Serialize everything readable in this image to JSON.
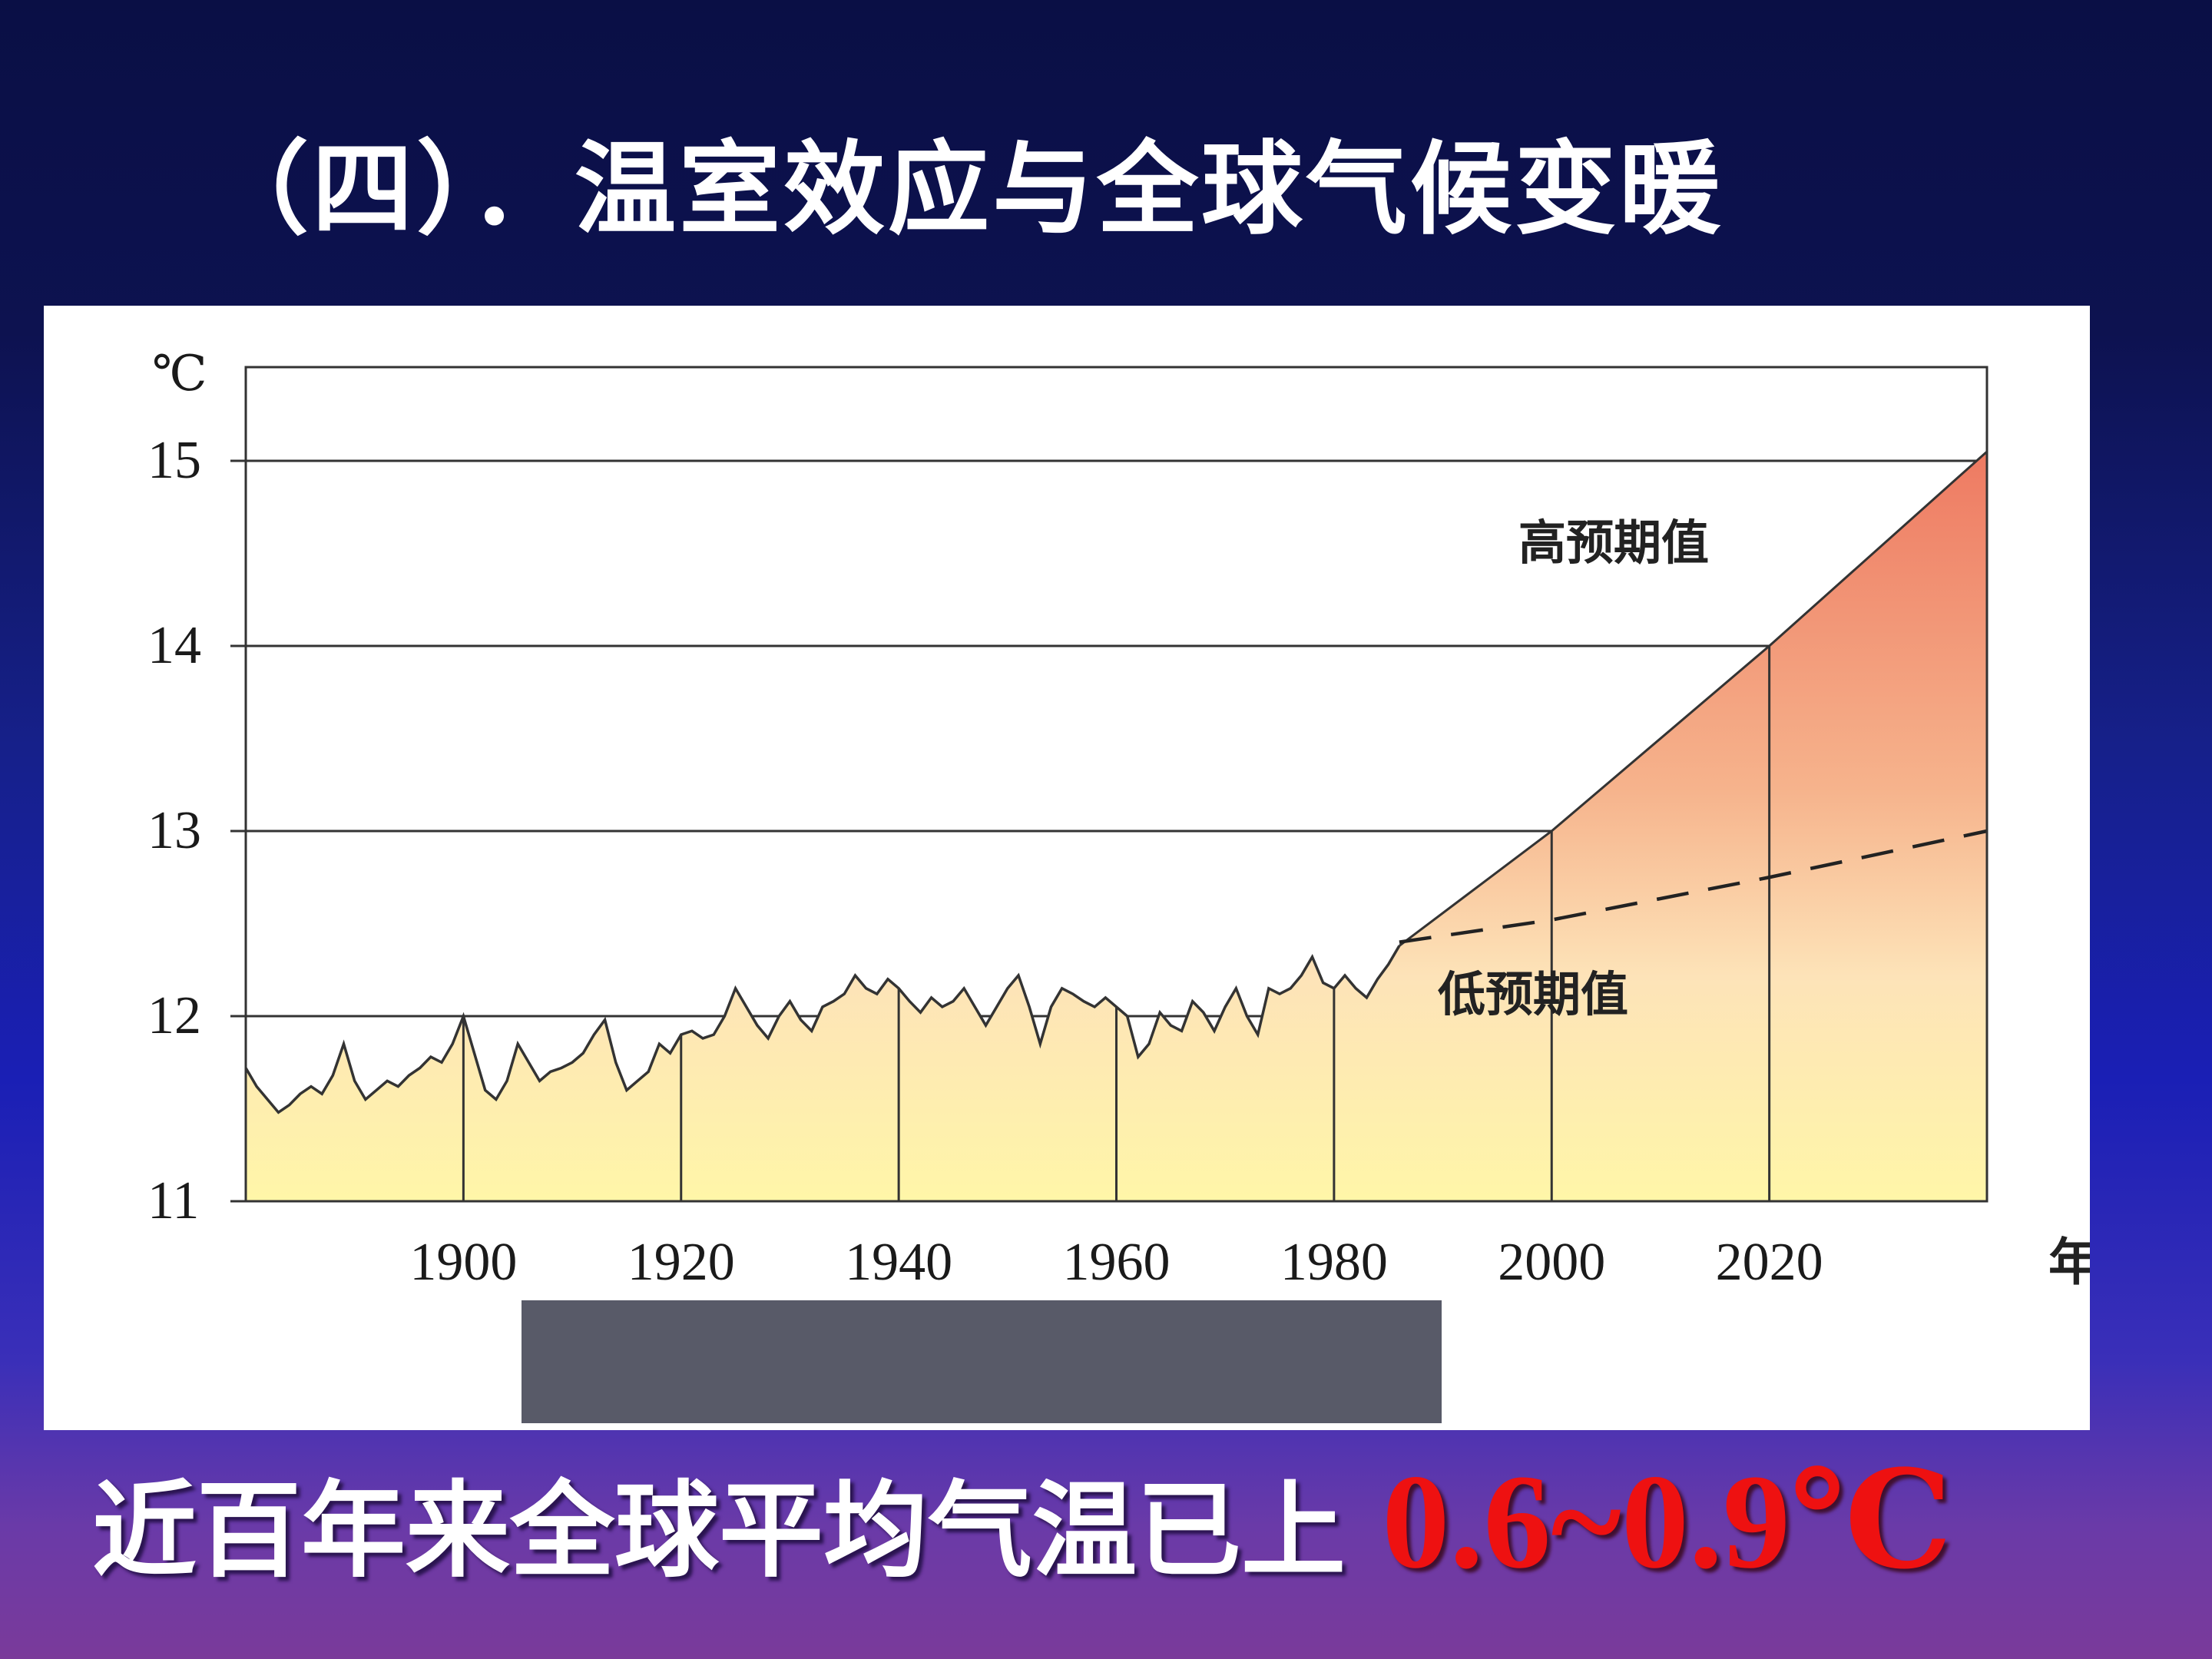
{
  "title": "（四）．温室效应与全球气候变暖",
  "footer": {
    "text": "近百年来全球平均气温已上",
    "highlight": "0.6~0.9℃",
    "highlight_color": "#ee1111"
  },
  "chart_data": {
    "type": "area",
    "title": "",
    "xlabel": "年",
    "ylabel": "℃",
    "xlim": [
      1880,
      2040
    ],
    "ylim": [
      11,
      15.5
    ],
    "x_ticks": [
      1900,
      1920,
      1940,
      1960,
      1980,
      2000,
      2020
    ],
    "y_ticks": [
      11,
      12,
      13,
      14,
      15
    ],
    "grid": "horizontal",
    "series": [
      {
        "values": [
          [
            1880,
            11.72
          ],
          [
            1881,
            11.62
          ],
          [
            1882,
            11.55
          ],
          [
            1883,
            11.48
          ],
          [
            1884,
            11.52
          ],
          [
            1885,
            11.58
          ],
          [
            1886,
            11.62
          ],
          [
            1887,
            11.58
          ],
          [
            1888,
            11.68
          ],
          [
            1889,
            11.85
          ],
          [
            1890,
            11.65
          ],
          [
            1891,
            11.55
          ],
          [
            1892,
            11.6
          ],
          [
            1893,
            11.65
          ],
          [
            1894,
            11.62
          ],
          [
            1895,
            11.68
          ],
          [
            1896,
            11.72
          ],
          [
            1897,
            11.78
          ],
          [
            1898,
            11.75
          ],
          [
            1899,
            11.85
          ],
          [
            1900,
            12.0
          ],
          [
            1901,
            11.8
          ],
          [
            1902,
            11.6
          ],
          [
            1903,
            11.55
          ],
          [
            1904,
            11.65
          ],
          [
            1905,
            11.85
          ],
          [
            1906,
            11.75
          ],
          [
            1907,
            11.65
          ],
          [
            1908,
            11.7
          ],
          [
            1909,
            11.72
          ],
          [
            1910,
            11.75
          ],
          [
            1911,
            11.8
          ],
          [
            1912,
            11.9
          ],
          [
            1913,
            11.98
          ],
          [
            1914,
            11.75
          ],
          [
            1915,
            11.6
          ],
          [
            1916,
            11.65
          ],
          [
            1917,
            11.7
          ],
          [
            1918,
            11.85
          ],
          [
            1919,
            11.8
          ],
          [
            1920,
            11.9
          ],
          [
            1921,
            11.92
          ],
          [
            1922,
            11.88
          ],
          [
            1923,
            11.9
          ],
          [
            1924,
            12.0
          ],
          [
            1925,
            12.15
          ],
          [
            1926,
            12.05
          ],
          [
            1927,
            11.95
          ],
          [
            1928,
            11.88
          ],
          [
            1929,
            12.0
          ],
          [
            1930,
            12.08
          ],
          [
            1931,
            11.98
          ],
          [
            1932,
            11.92
          ],
          [
            1933,
            12.05
          ],
          [
            1934,
            12.08
          ],
          [
            1935,
            12.12
          ],
          [
            1936,
            12.22
          ],
          [
            1937,
            12.15
          ],
          [
            1938,
            12.12
          ],
          [
            1939,
            12.2
          ],
          [
            1940,
            12.15
          ],
          [
            1941,
            12.08
          ],
          [
            1942,
            12.02
          ],
          [
            1943,
            12.1
          ],
          [
            1944,
            12.05
          ],
          [
            1945,
            12.08
          ],
          [
            1946,
            12.15
          ],
          [
            1947,
            12.05
          ],
          [
            1948,
            11.95
          ],
          [
            1949,
            12.05
          ],
          [
            1950,
            12.15
          ],
          [
            1951,
            12.22
          ],
          [
            1952,
            12.05
          ],
          [
            1953,
            11.85
          ],
          [
            1954,
            12.05
          ],
          [
            1955,
            12.15
          ],
          [
            1956,
            12.12
          ],
          [
            1957,
            12.08
          ],
          [
            1958,
            12.05
          ],
          [
            1959,
            12.1
          ],
          [
            1960,
            12.05
          ],
          [
            1961,
            12.0
          ],
          [
            1962,
            11.78
          ],
          [
            1963,
            11.85
          ],
          [
            1964,
            12.02
          ],
          [
            1965,
            11.95
          ],
          [
            1966,
            11.92
          ],
          [
            1967,
            12.08
          ],
          [
            1968,
            12.02
          ],
          [
            1969,
            11.92
          ],
          [
            1970,
            12.05
          ],
          [
            1971,
            12.15
          ],
          [
            1972,
            12.0
          ],
          [
            1973,
            11.9
          ],
          [
            1974,
            12.15
          ],
          [
            1975,
            12.12
          ],
          [
            1976,
            12.15
          ],
          [
            1977,
            12.22
          ],
          [
            1978,
            12.32
          ],
          [
            1979,
            12.18
          ],
          [
            1980,
            12.15
          ],
          [
            1981,
            12.22
          ],
          [
            1982,
            12.15
          ],
          [
            1983,
            12.1
          ],
          [
            1984,
            12.2
          ],
          [
            1985,
            12.28
          ],
          [
            1986,
            12.38
          ]
        ]
      },
      {
        "name": "高预期值",
        "style": "solid",
        "values": [
          [
            1986,
            12.38
          ],
          [
            2000,
            13.0
          ],
          [
            2020,
            14.0
          ],
          [
            2040,
            15.05
          ]
        ]
      },
      {
        "name": "低预期值",
        "style": "dashed",
        "values": [
          [
            1986,
            12.4
          ],
          [
            2000,
            12.52
          ],
          [
            2020,
            12.75
          ],
          [
            2040,
            13.0
          ]
        ]
      }
    ],
    "fill_gradient": [
      "#f07e67",
      "#f4b890",
      "#fff0c0",
      "#fff8b0"
    ]
  }
}
